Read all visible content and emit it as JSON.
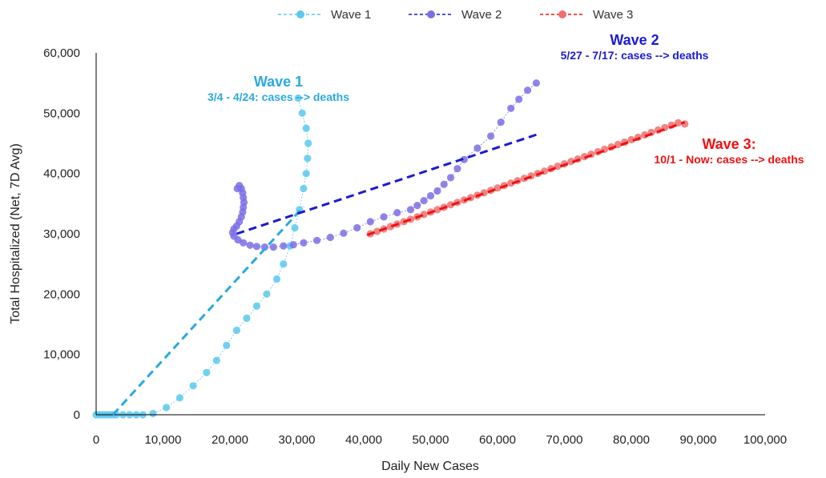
{
  "chart_data": {
    "type": "scatter",
    "xlabel": "Daily New Cases",
    "ylabel": "Total Hospitalized (Net, 7D Avg)",
    "xlim": [
      0,
      100000
    ],
    "ylim": [
      0,
      60000
    ],
    "x_ticks": [
      "0",
      "10,000",
      "20,000",
      "30,000",
      "40,000",
      "50,000",
      "60,000",
      "70,000",
      "80,000",
      "90,000",
      "100,000"
    ],
    "y_ticks": [
      "0",
      "10,000",
      "20,000",
      "30,000",
      "40,000",
      "50,000",
      "60,000"
    ],
    "grid": false,
    "legend_position": "top-center",
    "series": [
      {
        "name": "Wave 1",
        "color": "#5bc8ee",
        "trend_color": "#29a9e0",
        "trend": [
          [
            2500,
            0
          ],
          [
            31000,
            34500
          ]
        ],
        "points": [
          [
            0,
            0
          ],
          [
            500,
            0
          ],
          [
            1000,
            0
          ],
          [
            1500,
            0
          ],
          [
            2000,
            0
          ],
          [
            2500,
            0
          ],
          [
            3000,
            0
          ],
          [
            4000,
            0
          ],
          [
            5000,
            0
          ],
          [
            6000,
            0
          ],
          [
            7000,
            0
          ],
          [
            8500,
            200
          ],
          [
            10500,
            1200
          ],
          [
            12500,
            2800
          ],
          [
            14500,
            4800
          ],
          [
            16500,
            7000
          ],
          [
            18000,
            9000
          ],
          [
            19500,
            11500
          ],
          [
            21000,
            14000
          ],
          [
            22500,
            16000
          ],
          [
            24000,
            18000
          ],
          [
            25500,
            20000
          ],
          [
            27000,
            22500
          ],
          [
            28000,
            25000
          ],
          [
            29000,
            28000
          ],
          [
            29700,
            31000
          ],
          [
            30400,
            34000
          ],
          [
            31000,
            37500
          ],
          [
            31400,
            40000
          ],
          [
            31600,
            42500
          ],
          [
            31700,
            45000
          ],
          [
            31400,
            47500
          ],
          [
            30800,
            50000
          ],
          [
            30200,
            52500
          ]
        ]
      },
      {
        "name": "Wave 2",
        "color": "#7b6fe6",
        "trend_color": "#1a1ad6",
        "trend": [
          [
            21000,
            30000
          ],
          [
            66000,
            46500
          ]
        ],
        "points": [
          [
            21100,
            37500
          ],
          [
            21400,
            38000
          ],
          [
            21700,
            37500
          ],
          [
            21900,
            36800
          ],
          [
            22000,
            36000
          ],
          [
            22100,
            35200
          ],
          [
            22000,
            34400
          ],
          [
            21900,
            33600
          ],
          [
            21700,
            32800
          ],
          [
            21400,
            32000
          ],
          [
            21000,
            31300
          ],
          [
            20600,
            30800
          ],
          [
            20400,
            30200
          ],
          [
            20600,
            29600
          ],
          [
            21200,
            29000
          ],
          [
            22000,
            28500
          ],
          [
            23000,
            28100
          ],
          [
            24000,
            27900
          ],
          [
            25200,
            27800
          ],
          [
            26500,
            27800
          ],
          [
            28000,
            28000
          ],
          [
            29500,
            28200
          ],
          [
            31000,
            28500
          ],
          [
            33000,
            28900
          ],
          [
            35000,
            29400
          ],
          [
            37000,
            30100
          ],
          [
            39000,
            31000
          ],
          [
            41000,
            32000
          ],
          [
            43000,
            32800
          ],
          [
            45000,
            33500
          ],
          [
            47000,
            34000
          ],
          [
            48000,
            34700
          ],
          [
            49000,
            35500
          ],
          [
            50000,
            36300
          ],
          [
            51000,
            37100
          ],
          [
            52000,
            38200
          ],
          [
            53000,
            39300
          ],
          [
            54000,
            40800
          ],
          [
            55000,
            42300
          ],
          [
            57000,
            44200
          ],
          [
            59000,
            46200
          ],
          [
            60500,
            48500
          ],
          [
            62000,
            50800
          ],
          [
            63200,
            52300
          ],
          [
            64500,
            53800
          ],
          [
            65800,
            55000
          ]
        ]
      },
      {
        "name": "Wave 3",
        "color": "#f07070",
        "trend_color": "#ee1111",
        "trend": [
          [
            40500,
            29800
          ],
          [
            88000,
            48500
          ]
        ],
        "points": [
          [
            41000,
            30000
          ],
          [
            42000,
            30400
          ],
          [
            43000,
            30800
          ],
          [
            44000,
            31200
          ],
          [
            45000,
            31600
          ],
          [
            46000,
            32000
          ],
          [
            47000,
            32400
          ],
          [
            48000,
            32800
          ],
          [
            49000,
            33200
          ],
          [
            50000,
            33600
          ],
          [
            51000,
            34000
          ],
          [
            52000,
            34400
          ],
          [
            53000,
            34800
          ],
          [
            54000,
            35200
          ],
          [
            55000,
            35600
          ],
          [
            56000,
            36000
          ],
          [
            57000,
            36400
          ],
          [
            58000,
            36800
          ],
          [
            59000,
            37200
          ],
          [
            60000,
            37600
          ],
          [
            61000,
            38000
          ],
          [
            62000,
            38400
          ],
          [
            63000,
            38800
          ],
          [
            64000,
            39200
          ],
          [
            65000,
            39600
          ],
          [
            66000,
            40000
          ],
          [
            67000,
            40400
          ],
          [
            68000,
            40800
          ],
          [
            69000,
            41200
          ],
          [
            70000,
            41600
          ],
          [
            71000,
            42000
          ],
          [
            72000,
            42400
          ],
          [
            73000,
            42800
          ],
          [
            74000,
            43200
          ],
          [
            75000,
            43600
          ],
          [
            76000,
            44000
          ],
          [
            77000,
            44400
          ],
          [
            78000,
            44800
          ],
          [
            79000,
            45200
          ],
          [
            80000,
            45600
          ],
          [
            81000,
            46000
          ],
          [
            82000,
            46400
          ],
          [
            83000,
            46800
          ],
          [
            84000,
            47200
          ],
          [
            85000,
            47600
          ],
          [
            86000,
            48000
          ],
          [
            87000,
            48400
          ],
          [
            88000,
            48200
          ]
        ]
      }
    ],
    "annotations": [
      {
        "title": "Wave 1",
        "subtitle": "3/4 - 4/24: cases --> deaths",
        "color": "#29a9e0"
      },
      {
        "title": "Wave 2",
        "subtitle": "5/27 - 7/17: cases --> deaths",
        "color": "#1a1ad6"
      },
      {
        "title": "Wave 3:",
        "subtitle": "10/1 - Now: cases --> deaths",
        "color": "#ee1111"
      }
    ]
  }
}
